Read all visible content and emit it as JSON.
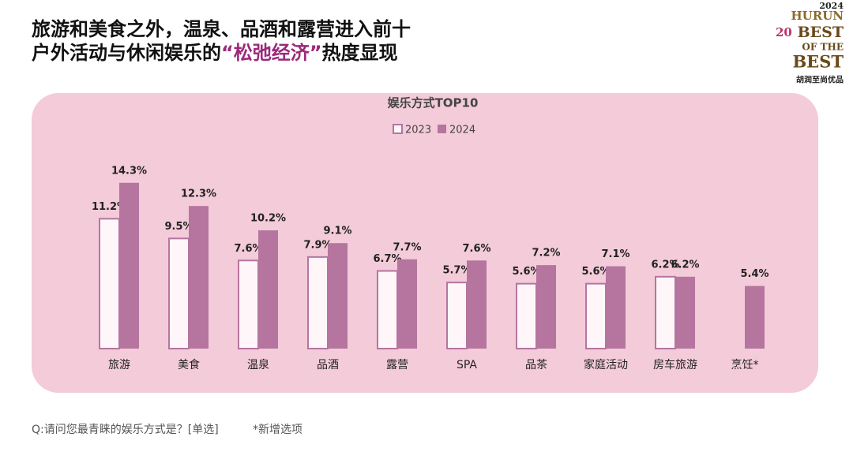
{
  "header": {
    "title_line1": "旅游和美食之外，温泉、品酒和露营进入前十",
    "title_line2_start": "户外活动与休闲娱乐的",
    "title_highlight": "“松弛经济”",
    "title_line2_end": "热度显现"
  },
  "logo": {
    "year": "2024",
    "brand": "HURUN",
    "number": "20",
    "best1": "BEST",
    "of_the": "OF THE",
    "best2": "BEST",
    "tagline": "胡润至尚优品"
  },
  "chart_data": {
    "type": "bar",
    "title": "娱乐方式TOP10",
    "categories": [
      "旅游",
      "美食",
      "温泉",
      "品酒",
      "露营",
      "SPA",
      "品茶",
      "家庭活动",
      "房车旅游",
      "烹饪*"
    ],
    "series": [
      {
        "name": "2023",
        "color": "#b5759f",
        "style": "outline",
        "values": [
          11.2,
          9.5,
          7.6,
          7.9,
          6.7,
          5.7,
          5.6,
          5.6,
          6.2,
          null
        ],
        "value_labels": [
          "11.2%",
          "9.5%",
          "7.6%",
          "7.9%",
          "6.7%",
          "5.7%",
          "5.6%",
          "5.6%",
          "6.2%",
          null
        ]
      },
      {
        "name": "2024",
        "color": "#b5759f",
        "style": "fill",
        "values": [
          14.3,
          12.3,
          10.2,
          9.1,
          7.7,
          7.6,
          7.2,
          7.1,
          6.2,
          5.4
        ],
        "value_labels": [
          "14.3%",
          "12.3%",
          "10.2%",
          "9.1%",
          "7.7%",
          "7.6%",
          "7.2%",
          "7.1%",
          "6.2%",
          "5.4%"
        ]
      }
    ],
    "legend": "top"
  },
  "footer": {
    "question": "Q:请问您最青睐的娱乐方式是？[单选]",
    "note": "*新增选项"
  }
}
